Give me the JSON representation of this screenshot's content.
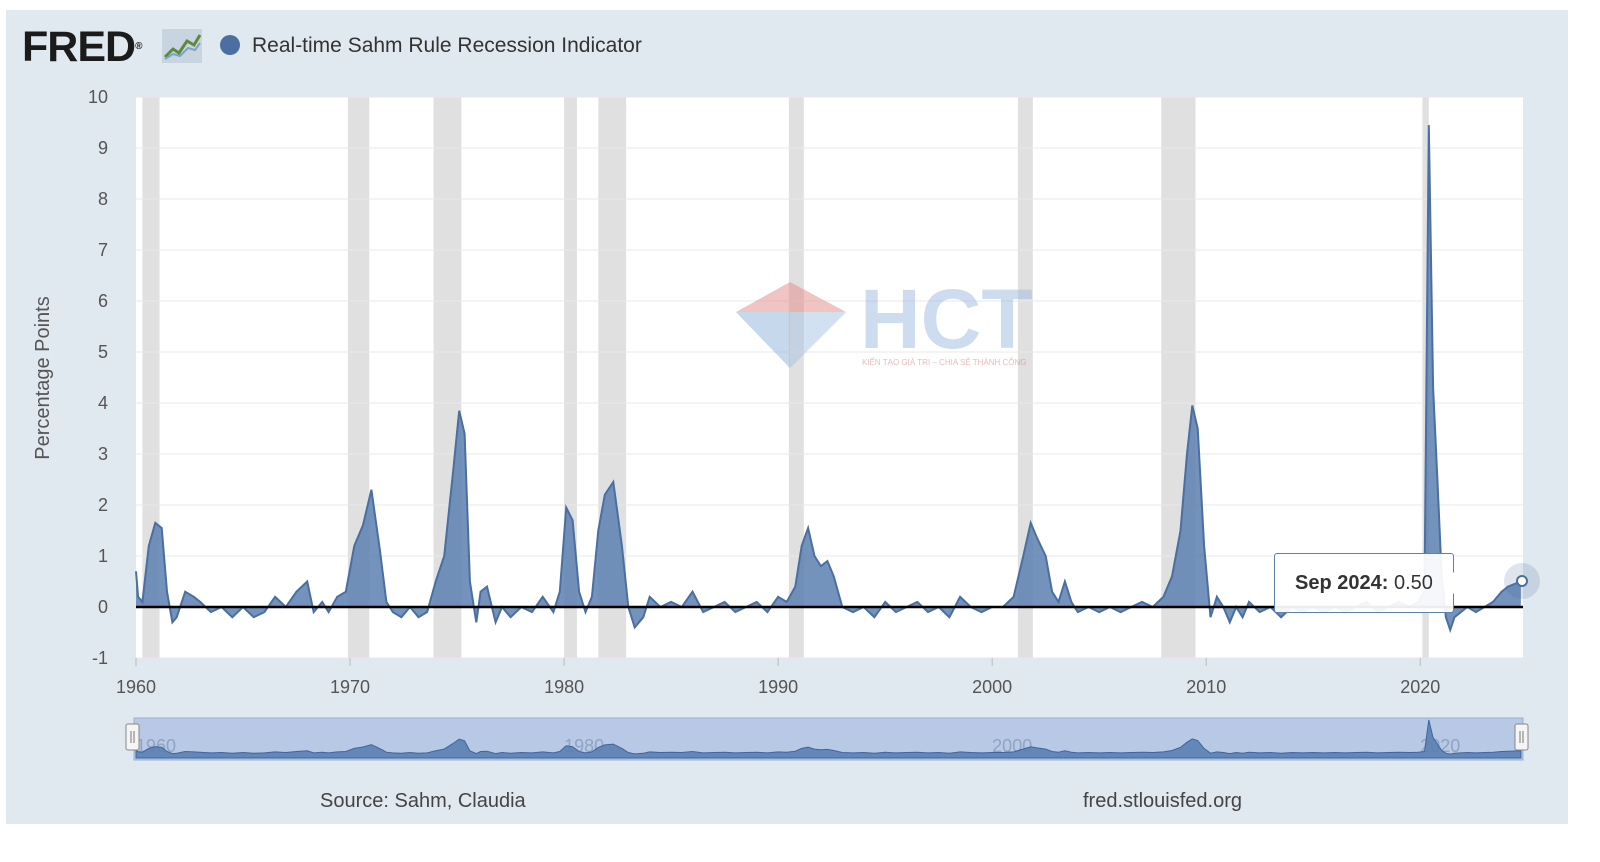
{
  "header": {
    "logo_text": "FRED",
    "logo_mark": "®",
    "logo_icon": "trend-line-icon",
    "series_title": "Real-time Sahm Rule Recession Indicator"
  },
  "colors": {
    "series": "#4a6fa0",
    "series_fill": "#5a7fb0",
    "recession": "#e0e0e0",
    "zero_line": "#000000",
    "plot_bg": "#ffffff",
    "frame_bg": "#e1e9f0",
    "navigator_bg": "#b8c9e6"
  },
  "footer": {
    "source": "Source: Sahm, Claudia",
    "site": "fred.stlouisfed.org"
  },
  "tooltip": {
    "date": "Sep 2024:",
    "value": "0.50"
  },
  "watermark": {
    "text": "HCT",
    "tagline": "KIẾN TẠO GIÁ TRỊ – CHIA SẺ THÀNH CÔNG"
  },
  "chart_data": {
    "type": "area",
    "title": "Real-time Sahm Rule Recession Indicator",
    "xlabel": "",
    "ylabel": "Percentage Points",
    "xlim": [
      1960,
      2024.8
    ],
    "ylim": [
      -1,
      10
    ],
    "xticks": [
      1960,
      1970,
      1980,
      1990,
      2000,
      2010,
      2020
    ],
    "yticks": [
      -1,
      0,
      1,
      2,
      3,
      4,
      5,
      6,
      7,
      8,
      9,
      10
    ],
    "recessions": [
      [
        1960.3,
        1961.1
      ],
      [
        1969.9,
        1970.9
      ],
      [
        1973.9,
        1975.2
      ],
      [
        1980.0,
        1980.6
      ],
      [
        1981.6,
        1982.9
      ],
      [
        1990.5,
        1991.2
      ],
      [
        2001.2,
        2001.9
      ],
      [
        2007.9,
        2009.5
      ],
      [
        2020.1,
        2020.4
      ]
    ],
    "series": [
      {
        "name": "Real-time Sahm Rule Recession Indicator",
        "x": [
          1960.0,
          1960.1,
          1960.3,
          1960.6,
          1960.9,
          1961.2,
          1961.45,
          1961.7,
          1961.9,
          1962.3,
          1962.7,
          1963.0,
          1963.5,
          1964.0,
          1964.5,
          1965.0,
          1965.5,
          1966.0,
          1966.5,
          1967.0,
          1967.5,
          1968.0,
          1968.3,
          1968.7,
          1969.0,
          1969.4,
          1969.8,
          1970.2,
          1970.6,
          1971.0,
          1971.4,
          1971.7,
          1972.0,
          1972.4,
          1972.8,
          1973.2,
          1973.6,
          1974.0,
          1974.4,
          1974.8,
          1975.1,
          1975.35,
          1975.6,
          1975.9,
          1976.1,
          1976.4,
          1976.8,
          1977.1,
          1977.5,
          1978.0,
          1978.5,
          1979.0,
          1979.5,
          1979.8,
          1980.1,
          1980.4,
          1980.7,
          1981.0,
          1981.3,
          1981.6,
          1981.9,
          1982.3,
          1982.7,
          1983.0,
          1983.3,
          1983.7,
          1984.0,
          1984.5,
          1985.0,
          1985.5,
          1986.0,
          1986.5,
          1987.0,
          1987.5,
          1988.0,
          1988.5,
          1989.0,
          1989.5,
          1990.0,
          1990.4,
          1990.8,
          1991.1,
          1991.4,
          1991.7,
          1992.0,
          1992.3,
          1992.6,
          1993.0,
          1993.5,
          1994.0,
          1994.5,
          1995.0,
          1995.5,
          1996.0,
          1996.5,
          1997.0,
          1997.5,
          1998.0,
          1998.5,
          1999.0,
          1999.5,
          2000.0,
          2000.5,
          2001.0,
          2001.4,
          2001.8,
          2002.1,
          2002.5,
          2002.8,
          2003.1,
          2003.4,
          2003.7,
          2004.0,
          2004.5,
          2005.0,
          2005.5,
          2006.0,
          2006.5,
          2007.0,
          2007.5,
          2008.0,
          2008.4,
          2008.8,
          2009.1,
          2009.35,
          2009.6,
          2009.9,
          2010.2,
          2010.5,
          2010.8,
          2011.1,
          2011.4,
          2011.7,
          2012.0,
          2012.5,
          2013.0,
          2013.5,
          2014.0,
          2014.5,
          2015.0,
          2015.5,
          2016.0,
          2016.5,
          2017.0,
          2017.5,
          2018.0,
          2018.5,
          2019.0,
          2019.5,
          2019.9,
          2020.2,
          2020.4,
          2020.6,
          2020.8,
          2021.0,
          2021.2,
          2021.4,
          2021.6,
          2021.9,
          2022.2,
          2022.6,
          2023.0,
          2023.4,
          2023.8,
          2024.1,
          2024.4,
          2024.7
        ],
        "values": [
          0.7,
          0.2,
          0.1,
          1.2,
          1.65,
          1.55,
          0.3,
          -0.3,
          -0.2,
          0.3,
          0.2,
          0.1,
          -0.1,
          0.0,
          -0.2,
          0.0,
          -0.2,
          -0.1,
          0.2,
          0.0,
          0.3,
          0.5,
          -0.1,
          0.1,
          -0.1,
          0.2,
          0.3,
          1.2,
          1.6,
          2.3,
          1.1,
          0.1,
          -0.1,
          -0.2,
          0.0,
          -0.2,
          -0.1,
          0.5,
          1.0,
          2.6,
          3.85,
          3.4,
          0.5,
          -0.3,
          0.3,
          0.4,
          -0.3,
          0.0,
          -0.2,
          0.0,
          -0.1,
          0.2,
          -0.1,
          0.3,
          1.95,
          1.7,
          0.3,
          -0.1,
          0.2,
          1.5,
          2.2,
          2.45,
          1.2,
          0.0,
          -0.4,
          -0.2,
          0.2,
          0.0,
          0.1,
          0.0,
          0.3,
          -0.1,
          0.0,
          0.1,
          -0.1,
          0.0,
          0.1,
          -0.1,
          0.2,
          0.1,
          0.4,
          1.2,
          1.55,
          1.0,
          0.8,
          0.9,
          0.6,
          0.0,
          -0.1,
          0.0,
          -0.2,
          0.1,
          -0.1,
          0.0,
          0.1,
          -0.1,
          0.0,
          -0.2,
          0.2,
          0.0,
          -0.1,
          0.0,
          0.0,
          0.2,
          0.9,
          1.65,
          1.35,
          1.0,
          0.3,
          0.1,
          0.5,
          0.1,
          -0.1,
          0.0,
          -0.1,
          0.0,
          -0.1,
          0.0,
          0.1,
          0.0,
          0.2,
          0.6,
          1.5,
          3.0,
          3.95,
          3.5,
          1.2,
          -0.2,
          0.2,
          0.0,
          -0.3,
          0.0,
          -0.2,
          0.1,
          -0.1,
          0.0,
          -0.2,
          0.0,
          -0.1,
          0.0,
          -0.1,
          0.0,
          -0.1,
          0.0,
          0.1,
          -0.1,
          0.0,
          0.1,
          0.0,
          0.1,
          0.3,
          9.45,
          4.3,
          2.5,
          0.6,
          -0.2,
          -0.45,
          -0.2,
          -0.1,
          0.0,
          -0.1,
          0.0,
          0.1,
          0.3,
          0.4,
          0.45,
          0.5
        ]
      }
    ],
    "navigator": {
      "labels": [
        "1960",
        "1980",
        "2000",
        "2020"
      ]
    }
  }
}
